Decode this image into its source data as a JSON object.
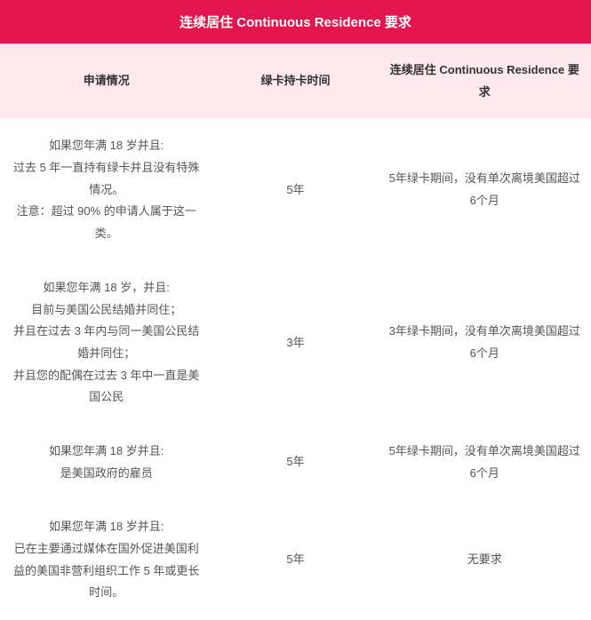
{
  "title": "连续居住 Continuous Residence 要求",
  "columns": [
    "申请情况",
    "绿卡持卡时间",
    "连续居住 Continuous Residence 要求"
  ],
  "rows": [
    {
      "situation": "如果您年满 18 岁并且:\n过去 5 年一直持有绿卡并且没有特殊情况。\n注意：超过 90% 的申请人属于这一类。",
      "duration": "5年",
      "requirement": "5年绿卡期间，没有单次离境美国超过6个月"
    },
    {
      "situation": "如果您年满 18 岁，并且:\n目前与美国公民结婚并同住；\n并且在过去 3 年内与同一美国公民结婚并同住；\n并且您的配偶在过去 3 年中一直是美国公民",
      "duration": "3年",
      "requirement": "3年绿卡期间，没有单次离境美国超过6个月"
    },
    {
      "situation": "如果您年满 18 岁并且:\n是美国政府的雇员",
      "duration": "5年",
      "requirement": "5年绿卡期间，没有单次离境美国超过6个月"
    },
    {
      "situation": "如果您年满 18 岁并且:\n已在主要通过媒体在国外促进美国利益的美国非营利组织工作 5 年或更长时间。",
      "duration": "5年",
      "requirement": "无要求"
    }
  ],
  "colors": {
    "header_bg": "#e2154f",
    "header_text": "#ffffff",
    "thead_bg": "#ffe9ee",
    "body_text": "#555555",
    "th_text": "#333333"
  }
}
